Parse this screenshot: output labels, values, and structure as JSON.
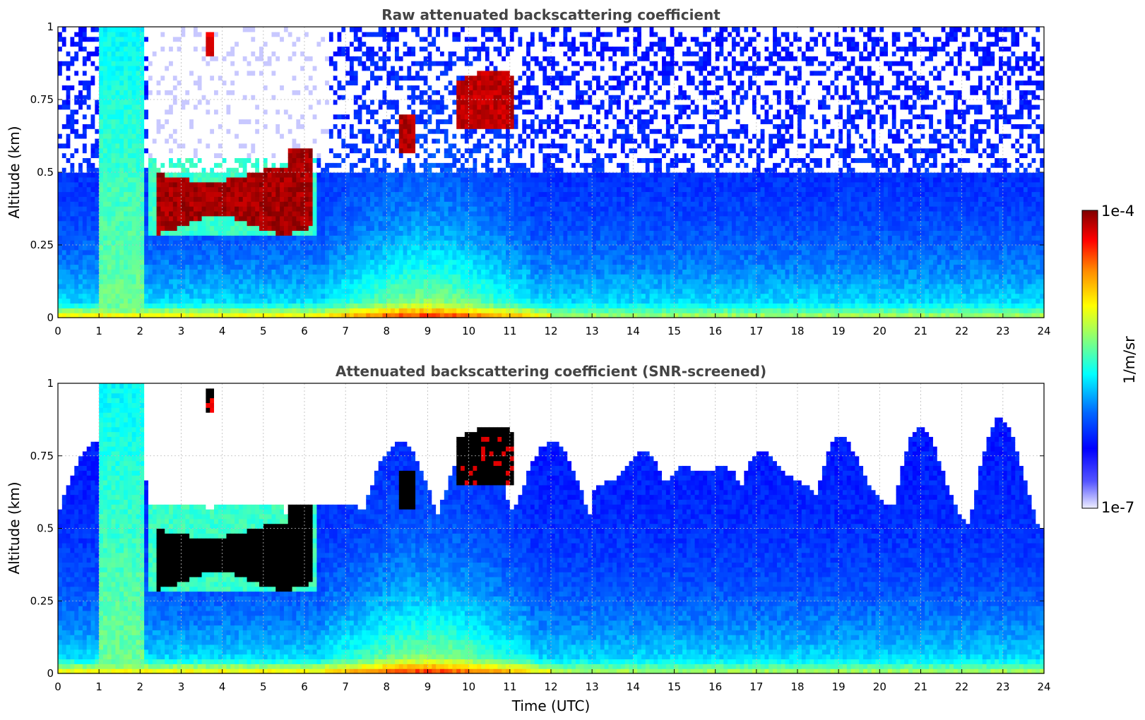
{
  "chart_data": [
    {
      "type": "heatmap",
      "title": "Raw attenuated backscattering coefficient",
      "xlabel": "",
      "ylabel": "Altitude (km)",
      "xlim": [
        0,
        24
      ],
      "ylim": [
        0,
        1
      ],
      "x_ticks": [
        "0",
        "1",
        "2",
        "3",
        "4",
        "5",
        "6",
        "7",
        "8",
        "9",
        "10",
        "11",
        "12",
        "13",
        "14",
        "15",
        "16",
        "17",
        "18",
        "19",
        "20",
        "21",
        "22",
        "23",
        "24"
      ],
      "y_ticks": [
        "0",
        "0.25",
        "0.5",
        "0.75",
        "1"
      ],
      "grid": true,
      "features": [
        {
          "feature": "cloud layer",
          "time": [
            2.4,
            6.1
          ],
          "altitude": [
            0.32,
            0.52
          ],
          "value": "1e-4"
        },
        {
          "feature": "cloud",
          "time": [
            8.2,
            8.8
          ],
          "altitude": [
            0.56,
            0.7
          ],
          "value": "1e-4"
        },
        {
          "feature": "cloud",
          "time": [
            9.7,
            11.1
          ],
          "altitude": [
            0.65,
            0.88
          ],
          "value": "1e-4"
        },
        {
          "feature": "cloud",
          "time": [
            3.6,
            3.85
          ],
          "altitude": [
            0.9,
            0.98
          ],
          "value": "1e-4"
        },
        {
          "feature": "precipitation column",
          "time": [
            1.0,
            2.1
          ],
          "altitude": [
            0,
            1
          ],
          "value": "5e-6"
        },
        {
          "feature": "aerosol layer",
          "time": [
            0,
            24
          ],
          "altitude": [
            0,
            0.05
          ],
          "value": "1e-5"
        }
      ]
    },
    {
      "type": "heatmap",
      "title": "Attenuated backscattering coefficient (SNR-screened)",
      "xlabel": "Time (UTC)",
      "ylabel": "Altitude (km)",
      "xlim": [
        0,
        24
      ],
      "ylim": [
        0,
        1
      ],
      "x_ticks": [
        "0",
        "1",
        "2",
        "3",
        "4",
        "5",
        "6",
        "7",
        "8",
        "9",
        "10",
        "11",
        "12",
        "13",
        "14",
        "15",
        "16",
        "17",
        "18",
        "19",
        "20",
        "21",
        "22",
        "23",
        "24"
      ],
      "y_ticks": [
        "0",
        "0.25",
        "0.5",
        "0.75",
        "1"
      ],
      "grid": true,
      "features": [
        {
          "feature": "saturated cloud layer",
          "time": [
            2.4,
            6.1
          ],
          "altitude": [
            0.32,
            0.52
          ],
          "value": "saturated"
        },
        {
          "feature": "saturated cloud",
          "time": [
            8.2,
            8.8
          ],
          "altitude": [
            0.56,
            0.7
          ],
          "value": "saturated"
        },
        {
          "feature": "saturated cloud",
          "time": [
            9.7,
            11.1
          ],
          "altitude": [
            0.65,
            0.88
          ],
          "value": "saturated"
        }
      ]
    }
  ],
  "colorbar": {
    "label": "1/m/sr",
    "max_label": "1e-4",
    "min_label": "1e-7",
    "scale": "log",
    "colors": [
      "#eeeeff",
      "#0000ff",
      "#00ffff",
      "#ffff00",
      "#ff0000",
      "#800000"
    ]
  }
}
